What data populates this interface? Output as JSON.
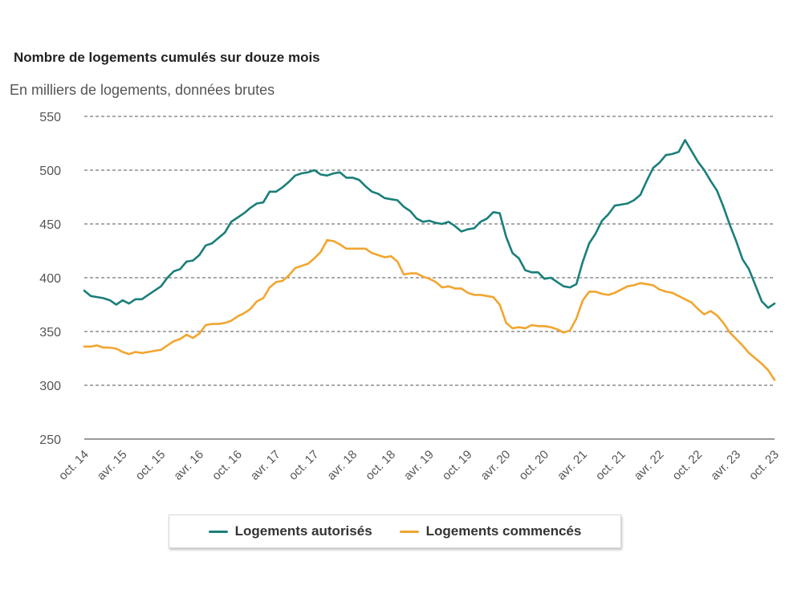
{
  "chart_data": {
    "type": "line",
    "title": "Nombre de logements cumulés sur douze mois",
    "subtitle": "En milliers de logements, données brutes",
    "xlabel": "",
    "ylabel": "",
    "ylim": [
      250,
      550
    ],
    "yticks": [
      "550",
      "500",
      "450",
      "400",
      "350",
      "300",
      "250"
    ],
    "x_ticks": [
      "oct. 14",
      "avr. 15",
      "oct. 15",
      "avr. 16",
      "oct. 16",
      "avr. 17",
      "oct. 17",
      "avr. 18",
      "oct. 18",
      "avr. 19",
      "oct. 19",
      "avr. 20",
      "oct. 20",
      "avr. 21",
      "oct. 21",
      "avr. 22",
      "oct. 22",
      "avr. 23",
      "oct. 23"
    ],
    "grid": true,
    "legend_position": "bottom",
    "series": [
      {
        "name": "Logements autorisés",
        "color": "#1a7f7a",
        "values": [
          388,
          383,
          382,
          381,
          379,
          375,
          379,
          376,
          380,
          380,
          384,
          388,
          392,
          400,
          406,
          408,
          415,
          416,
          421,
          430,
          432,
          437,
          442,
          452,
          456,
          460,
          465,
          469,
          470,
          480,
          480,
          484,
          489,
          495,
          497,
          498,
          500,
          496,
          495,
          497,
          498,
          493,
          493,
          491,
          485,
          480,
          478,
          474,
          473,
          472,
          466,
          462,
          455,
          452,
          453,
          451,
          450,
          452,
          448,
          443,
          445,
          446,
          452,
          455,
          461,
          460,
          438,
          423,
          418,
          407,
          405,
          405,
          399,
          400,
          396,
          392,
          391,
          394,
          415,
          432,
          441,
          453,
          459,
          467,
          468,
          469,
          472,
          477,
          490,
          502,
          507,
          514,
          515,
          517,
          528,
          518,
          508,
          500,
          490,
          481,
          466,
          449,
          434,
          417,
          408,
          393,
          378,
          372,
          376
        ]
      },
      {
        "name": "Logements commencés",
        "color": "#f2a52f",
        "values": [
          336,
          336,
          337,
          335,
          335,
          334,
          331,
          329,
          331,
          330,
          331,
          332,
          333,
          337,
          341,
          343,
          347,
          344,
          348,
          356,
          357,
          357,
          358,
          360,
          364,
          367,
          371,
          378,
          381,
          391,
          396,
          397,
          402,
          409,
          411,
          413,
          418,
          424,
          435,
          434,
          431,
          427,
          427,
          427,
          427,
          423,
          421,
          419,
          420,
          415,
          403,
          404,
          404,
          401,
          399,
          396,
          391,
          392,
          390,
          390,
          386,
          384,
          384,
          383,
          382,
          375,
          358,
          353,
          354,
          353,
          356,
          355,
          355,
          354,
          352,
          349,
          351,
          362,
          379,
          387,
          387,
          385,
          384,
          386,
          389,
          392,
          393,
          395,
          394,
          393,
          389,
          387,
          386,
          383,
          380,
          377,
          371,
          366,
          369,
          365,
          358,
          349,
          343,
          337,
          330,
          325,
          320,
          314,
          305
        ]
      }
    ]
  }
}
